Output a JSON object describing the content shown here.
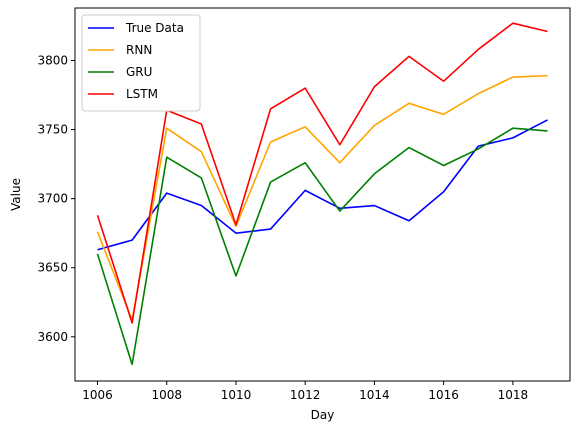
{
  "chart_data": {
    "type": "line",
    "xlabel": "Day",
    "ylabel": "Value",
    "x": [
      1006,
      1007,
      1008,
      1009,
      1010,
      1011,
      1012,
      1013,
      1014,
      1015,
      1016,
      1017,
      1018,
      1019
    ],
    "xlim": [
      1005.35,
      1019.65
    ],
    "ylim": [
      3568,
      3838
    ],
    "xticks": [
      1006,
      1008,
      1010,
      1012,
      1014,
      1016,
      1018
    ],
    "yticks": [
      3600,
      3650,
      3700,
      3750,
      3800
    ],
    "grid": false,
    "legend": "top-left",
    "series": [
      {
        "name": "True Data",
        "color": "#0000ff",
        "values": [
          3663,
          3670,
          3704,
          3695,
          3675,
          3678,
          3706,
          3693,
          3695,
          3684,
          3705,
          3738,
          3744,
          3757
        ]
      },
      {
        "name": "RNN",
        "color": "#ffa500",
        "values": [
          3676,
          3612,
          3751,
          3734,
          3680,
          3741,
          3752,
          3726,
          3753,
          3769,
          3761,
          3776,
          3788,
          3789
        ]
      },
      {
        "name": "GRU",
        "color": "#008000",
        "values": [
          3660,
          3580,
          3730,
          3715,
          3644,
          3712,
          3726,
          3691,
          3718,
          3737,
          3724,
          3736,
          3751,
          3749
        ]
      },
      {
        "name": "LSTM",
        "color": "#ff0000",
        "values": [
          3688,
          3610,
          3764,
          3754,
          3681,
          3765,
          3780,
          3739,
          3781,
          3803,
          3785,
          3808,
          3827,
          3821
        ]
      }
    ]
  }
}
